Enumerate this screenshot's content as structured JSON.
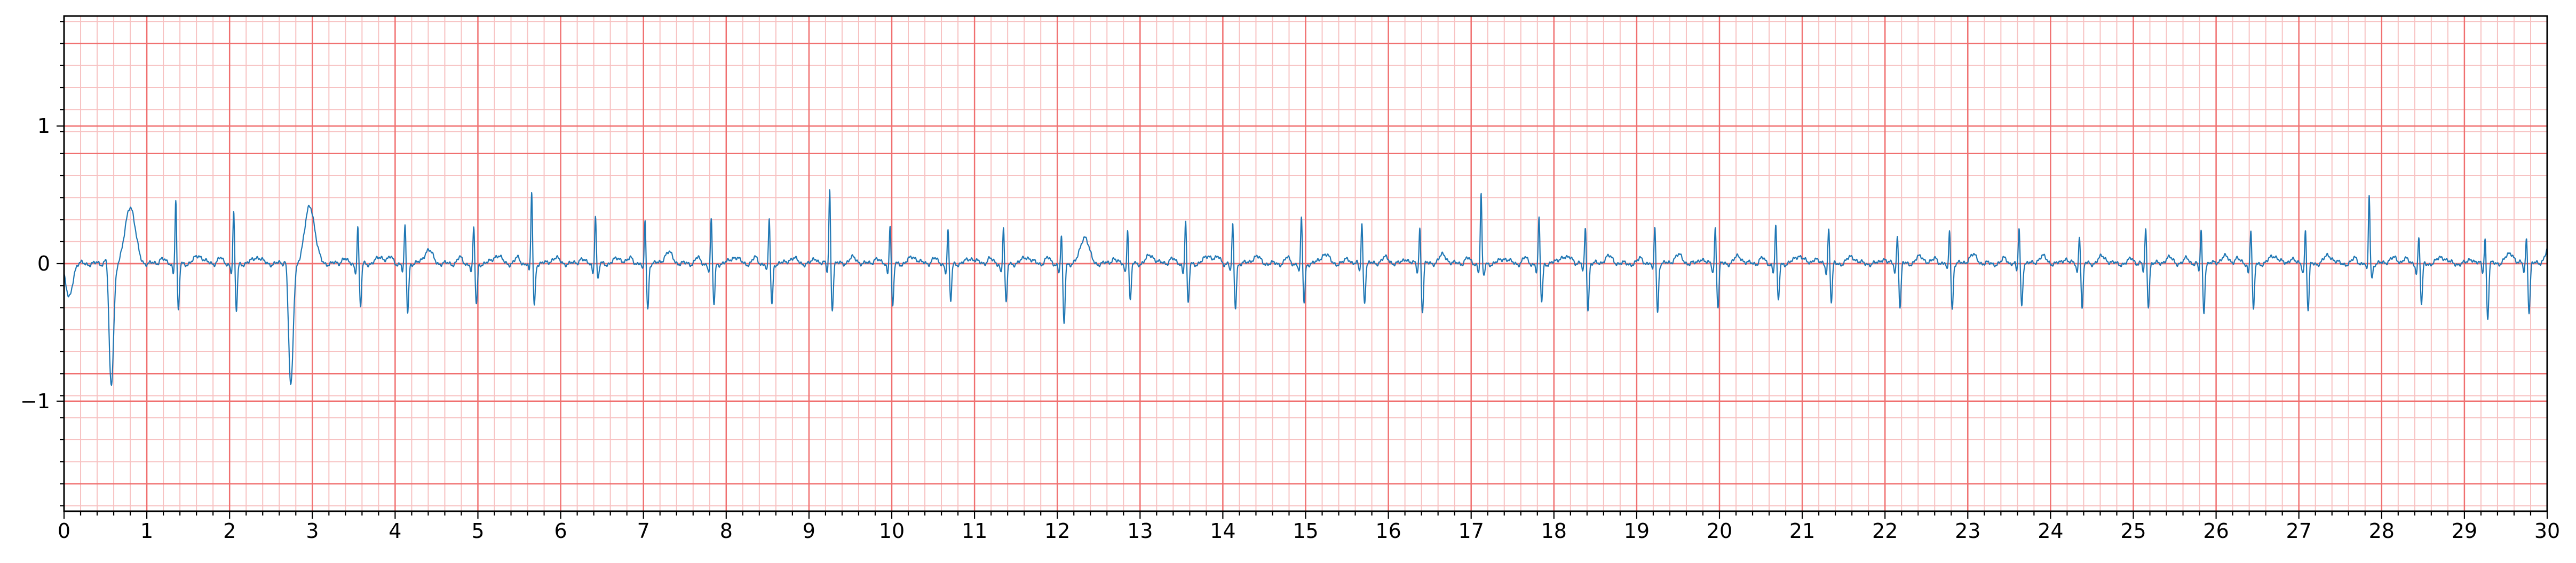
{
  "chart_data": {
    "type": "line",
    "title": "",
    "xlabel": "",
    "ylabel": "",
    "xlim": [
      0,
      30
    ],
    "ylim": [
      -1.8,
      1.8
    ],
    "x_ticks": [
      "0",
      "1",
      "2",
      "3",
      "4",
      "5",
      "6",
      "7",
      "8",
      "9",
      "10",
      "11",
      "12",
      "13",
      "14",
      "15",
      "16",
      "17",
      "18",
      "19",
      "20",
      "21",
      "22",
      "23",
      "24",
      "25",
      "26",
      "27",
      "28",
      "29",
      "30"
    ],
    "y_ticks": [
      {
        "value": 1,
        "label": "1"
      },
      {
        "value": 0,
        "label": "0"
      },
      {
        "value": -1,
        "label": "−1"
      }
    ],
    "grid": {
      "major_x": 1,
      "major_y": 0.8,
      "minor_x": 0.2,
      "minor_y": 0.16,
      "major_color": "#f07070",
      "minor_color": "#f7c2c2"
    },
    "line_color": "#1f77b4",
    "series": [
      {
        "name": "",
        "beats": [
          {
            "t": 0.55,
            "r": 0.12,
            "s": -0.9,
            "tw": 0.42,
            "wide": true
          },
          {
            "t": 1.35,
            "r": 0.48,
            "s": -0.35,
            "tw": 0.06
          },
          {
            "t": 2.05,
            "r": 0.38,
            "s": -0.35,
            "tw": 0.05
          },
          {
            "t": 2.72,
            "r": 0.1,
            "s": -0.9,
            "tw": 0.42,
            "wide": true
          },
          {
            "t": 3.55,
            "r": 0.28,
            "s": -0.32,
            "tw": 0.05
          },
          {
            "t": 4.12,
            "r": 0.28,
            "s": -0.35,
            "tw": 0.1
          },
          {
            "t": 4.95,
            "r": 0.26,
            "s": -0.3,
            "tw": 0.06
          },
          {
            "t": 5.65,
            "r": 0.53,
            "s": -0.3,
            "tw": 0.04
          },
          {
            "t": 6.42,
            "r": 0.36,
            "s": -0.12,
            "tw": 0.04
          },
          {
            "t": 7.02,
            "r": 0.32,
            "s": -0.33,
            "tw": 0.08
          },
          {
            "t": 7.82,
            "r": 0.32,
            "s": -0.3,
            "tw": 0.05
          },
          {
            "t": 8.52,
            "r": 0.32,
            "s": -0.3,
            "tw": 0.04
          },
          {
            "t": 9.25,
            "r": 0.55,
            "s": -0.33,
            "tw": 0.04
          },
          {
            "t": 9.98,
            "r": 0.3,
            "s": -0.32,
            "tw": 0.05
          },
          {
            "t": 10.68,
            "r": 0.25,
            "s": -0.28,
            "tw": 0.04
          },
          {
            "t": 11.35,
            "r": 0.27,
            "s": -0.3,
            "tw": 0.05
          },
          {
            "t": 12.05,
            "r": 0.2,
            "s": -0.45,
            "tw": 0.2
          },
          {
            "t": 12.85,
            "r": 0.26,
            "s": -0.28,
            "tw": 0.06
          },
          {
            "t": 13.55,
            "r": 0.32,
            "s": -0.3,
            "tw": 0.06
          },
          {
            "t": 14.12,
            "r": 0.28,
            "s": -0.32,
            "tw": 0.05
          },
          {
            "t": 14.95,
            "r": 0.33,
            "s": -0.28,
            "tw": 0.07
          },
          {
            "t": 15.68,
            "r": 0.3,
            "s": -0.28,
            "tw": 0.04
          },
          {
            "t": 16.38,
            "r": 0.27,
            "s": -0.35,
            "tw": 0.06
          },
          {
            "t": 17.12,
            "r": 0.5,
            "s": -0.1,
            "tw": 0.04
          },
          {
            "t": 17.82,
            "r": 0.33,
            "s": -0.28,
            "tw": 0.05
          },
          {
            "t": 18.38,
            "r": 0.27,
            "s": -0.33,
            "tw": 0.05
          },
          {
            "t": 19.22,
            "r": 0.28,
            "s": -0.35,
            "tw": 0.06
          },
          {
            "t": 19.95,
            "r": 0.27,
            "s": -0.32,
            "tw": 0.05
          },
          {
            "t": 20.68,
            "r": 0.28,
            "s": -0.28,
            "tw": 0.06
          },
          {
            "t": 21.32,
            "r": 0.27,
            "s": -0.28,
            "tw": 0.05
          },
          {
            "t": 22.15,
            "r": 0.22,
            "s": -0.32,
            "tw": 0.05
          },
          {
            "t": 22.78,
            "r": 0.25,
            "s": -0.33,
            "tw": 0.06
          },
          {
            "t": 23.62,
            "r": 0.27,
            "s": -0.3,
            "tw": 0.05
          },
          {
            "t": 24.35,
            "r": 0.22,
            "s": -0.32,
            "tw": 0.05
          },
          {
            "t": 25.15,
            "r": 0.26,
            "s": -0.3,
            "tw": 0.04
          },
          {
            "t": 25.82,
            "r": 0.25,
            "s": -0.35,
            "tw": 0.05
          },
          {
            "t": 26.42,
            "r": 0.26,
            "s": -0.35,
            "tw": 0.06
          },
          {
            "t": 27.08,
            "r": 0.25,
            "s": -0.35,
            "tw": 0.06
          },
          {
            "t": 27.85,
            "r": 0.5,
            "s": -0.1,
            "tw": 0.04
          },
          {
            "t": 28.45,
            "r": 0.2,
            "s": -0.3,
            "tw": 0.05
          },
          {
            "t": 29.25,
            "r": 0.2,
            "s": -0.4,
            "tw": 0.05
          },
          {
            "t": 29.75,
            "r": 0.2,
            "s": -0.35,
            "tw": 0.12
          }
        ]
      }
    ]
  }
}
